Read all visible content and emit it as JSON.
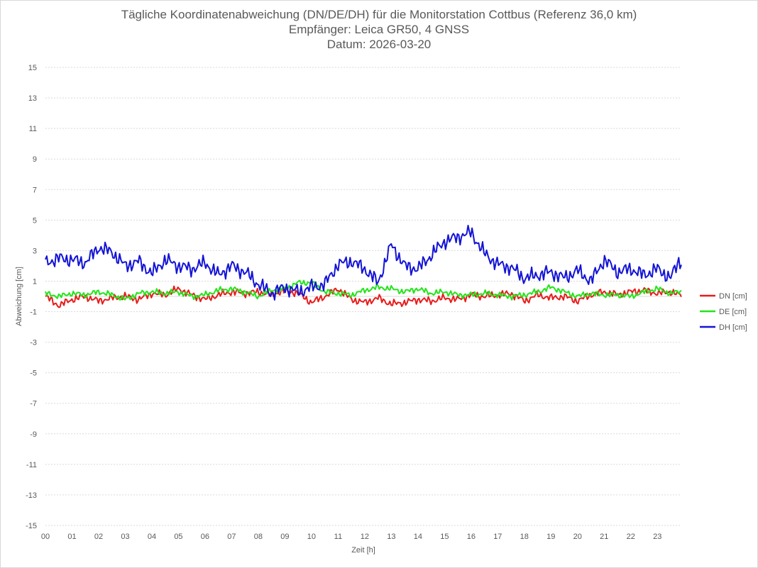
{
  "chart_data": {
    "type": "line",
    "title_lines": [
      "Tägliche Koordinatenabweichung (DN/DE/DH) für die Monitorstation Cottbus (Referenz 36,0 km)",
      "Empfänger: Leica GR50, 4 GNSS",
      "Datum: 2026-03-20"
    ],
    "xlabel": "Zeit [h]",
    "ylabel": "Abweichung [cm]",
    "xlim": [
      0,
      23.9
    ],
    "ylim": [
      -15,
      15
    ],
    "y_ticks": [
      "15",
      "13",
      "11",
      "9",
      "7",
      "5",
      "3",
      "1",
      "-1",
      "-3",
      "-5",
      "-7",
      "-9",
      "-11",
      "-13",
      "-15"
    ],
    "x_ticks": [
      "00",
      "01",
      "02",
      "03",
      "04",
      "05",
      "06",
      "07",
      "08",
      "09",
      "10",
      "11",
      "12",
      "13",
      "14",
      "15",
      "16",
      "17",
      "18",
      "19",
      "20",
      "21",
      "22",
      "23"
    ],
    "grid": true,
    "legend_position": "right",
    "x": [
      0.0,
      0.5,
      1.0,
      1.5,
      2.0,
      2.5,
      3.0,
      3.5,
      4.0,
      4.5,
      5.0,
      5.5,
      6.0,
      6.5,
      7.0,
      7.5,
      8.0,
      8.5,
      9.0,
      9.5,
      10.0,
      10.5,
      11.0,
      11.5,
      12.0,
      12.5,
      13.0,
      13.5,
      14.0,
      14.5,
      15.0,
      15.5,
      16.0,
      16.5,
      17.0,
      17.5,
      18.0,
      18.5,
      19.0,
      19.5,
      20.0,
      20.5,
      21.0,
      21.5,
      22.0,
      22.5,
      23.0,
      23.5,
      23.8
    ],
    "series": [
      {
        "name": "DN [cm]",
        "color": "#e81c1c",
        "values": [
          0.0,
          -0.6,
          -0.2,
          0.0,
          -0.3,
          -0.1,
          0.0,
          -0.2,
          0.2,
          0.1,
          0.5,
          0.1,
          -0.2,
          0.1,
          0.3,
          0.2,
          0.3,
          0.1,
          0.4,
          0.2,
          -0.4,
          0.0,
          0.5,
          -0.2,
          -0.4,
          -0.1,
          -0.5,
          -0.4,
          -0.2,
          -0.3,
          -0.1,
          -0.2,
          0.1,
          0.0,
          0.1,
          0.2,
          -0.3,
          0.1,
          -0.1,
          0.0,
          -0.3,
          0.1,
          0.3,
          0.1,
          0.3,
          0.4,
          0.2,
          0.3,
          0.1
        ]
      },
      {
        "name": "DE [cm]",
        "color": "#22e51a",
        "values": [
          0.2,
          0.0,
          0.2,
          0.1,
          0.3,
          0.1,
          -0.2,
          0.2,
          0.3,
          0.2,
          0.3,
          0.0,
          0.1,
          0.4,
          0.5,
          0.3,
          0.0,
          0.4,
          0.5,
          0.9,
          0.9,
          0.3,
          0.2,
          0.1,
          0.4,
          0.6,
          0.5,
          0.3,
          0.5,
          0.2,
          0.3,
          0.1,
          0.1,
          0.2,
          0.1,
          0.0,
          0.1,
          0.3,
          0.6,
          0.3,
          0.0,
          0.2,
          0.1,
          0.1,
          0.0,
          0.3,
          0.5,
          0.2,
          0.3
        ]
      },
      {
        "name": "DH [cm]",
        "color": "#1414d6",
        "values": [
          2.2,
          2.5,
          2.4,
          2.2,
          3.2,
          2.9,
          2.0,
          2.3,
          1.5,
          2.4,
          2.0,
          1.8,
          2.2,
          1.4,
          2.0,
          1.6,
          0.8,
          0.2,
          0.6,
          0.3,
          0.6,
          0.8,
          2.1,
          2.3,
          1.8,
          0.9,
          3.4,
          2.0,
          1.8,
          2.7,
          3.6,
          3.9,
          4.2,
          2.8,
          2.1,
          1.9,
          1.2,
          1.4,
          1.6,
          1.2,
          1.7,
          1.0,
          2.4,
          1.6,
          1.8,
          1.4,
          1.8,
          1.2,
          2.3
        ]
      }
    ]
  }
}
